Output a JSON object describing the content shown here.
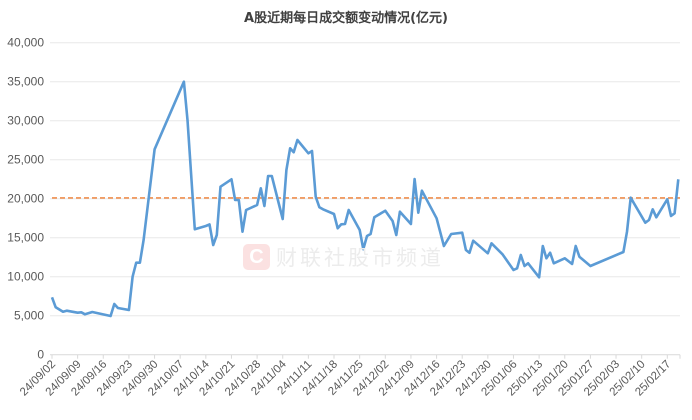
{
  "watermark": {
    "logo": "C",
    "text": "财联社股市频道"
  },
  "chart_data": {
    "type": "line",
    "title": "A股近期每日成交额变动情况(亿元)",
    "xlabel": "",
    "ylabel": "",
    "ylim": [
      0,
      40000
    ],
    "yticks": [
      "0",
      "5,000",
      "10,000",
      "15,000",
      "20,000",
      "25,000",
      "30,000",
      "35,000",
      "40,000"
    ],
    "xtick_labels": [
      "24/09/02",
      "24/09/09",
      "24/09/16",
      "24/09/23",
      "24/09/30",
      "24/10/07",
      "24/10/14",
      "24/10/21",
      "24/10/28",
      "24/11/04",
      "24/11/11",
      "24/11/18",
      "24/11/25",
      "24/12/02",
      "24/12/09",
      "24/12/16",
      "24/12/23",
      "24/12/30",
      "25/01/06",
      "25/01/13",
      "25/01/20",
      "25/01/27",
      "25/02/03",
      "25/02/10",
      "25/02/17"
    ],
    "grid": true,
    "legend": "none",
    "colors": {
      "series": "#5b9bd5",
      "reference": "#ed7d31"
    },
    "reference_line": {
      "value": 20100,
      "style": "dashed"
    },
    "series": [
      {
        "x": [
          "24/09/02",
          "24/09/03",
          "24/09/05",
          "24/09/06",
          "24/09/09",
          "24/09/10",
          "24/09/11",
          "24/09/13",
          "24/09/18",
          "24/09/19",
          "24/09/20",
          "24/09/23",
          "24/09/24",
          "24/09/25",
          "24/09/26",
          "24/09/27",
          "24/09/30",
          "24/10/08",
          "24/10/09",
          "24/10/11",
          "24/10/14",
          "24/10/15",
          "24/10/16",
          "24/10/17",
          "24/10/18",
          "24/10/21",
          "24/10/22",
          "24/10/23",
          "24/10/24",
          "24/10/25",
          "24/10/28",
          "24/10/29",
          "24/10/30",
          "24/10/31",
          "24/11/01",
          "24/11/04",
          "24/11/05",
          "24/11/06",
          "24/11/07",
          "24/11/08",
          "24/11/11",
          "24/11/12",
          "24/11/13",
          "24/11/14",
          "24/11/15",
          "24/11/18",
          "24/11/19",
          "24/11/20",
          "24/11/21",
          "24/11/22",
          "24/11/25",
          "24/11/26",
          "24/11/27",
          "24/11/28",
          "24/11/29",
          "24/12/02",
          "24/12/04",
          "24/12/05",
          "24/12/06",
          "24/12/09",
          "24/12/10",
          "24/12/11",
          "24/12/12",
          "24/12/16",
          "24/12/18",
          "24/12/20",
          "24/12/23",
          "24/12/24",
          "24/12/25",
          "24/12/26",
          "24/12/30",
          "24/12/31",
          "25/01/03",
          "25/01/06",
          "25/01/07",
          "25/01/08",
          "25/01/09",
          "25/01/10",
          "25/01/13",
          "25/01/14",
          "25/01/15",
          "25/01/16",
          "25/01/17",
          "25/01/20",
          "25/01/22",
          "25/01/23",
          "25/01/24",
          "25/01/27",
          "25/02/05",
          "25/02/06",
          "25/02/07",
          "25/02/11",
          "25/02/12",
          "25/02/13",
          "25/02/14",
          "25/02/17",
          "25/02/18",
          "25/02/19",
          "25/02/20"
        ],
        "values": [
          7360,
          6080,
          5510,
          5640,
          5380,
          5440,
          5180,
          5470,
          4960,
          6500,
          5990,
          5730,
          10000,
          11790,
          11790,
          14700,
          26330,
          35000,
          30090,
          16080,
          16500,
          16700,
          14060,
          15350,
          21540,
          22490,
          19830,
          19830,
          15770,
          18550,
          19190,
          21330,
          19060,
          22910,
          22910,
          17400,
          23680,
          26460,
          25950,
          27520,
          25820,
          26110,
          20260,
          18900,
          18640,
          18040,
          16200,
          16720,
          16760,
          18550,
          15990,
          13520,
          15220,
          15470,
          17610,
          18460,
          17140,
          15350,
          18330,
          16760,
          22530,
          18200,
          21030,
          17490,
          13940,
          15470,
          15640,
          13420,
          13070,
          14620,
          13000,
          14280,
          12870,
          10860,
          11080,
          12780,
          11370,
          11720,
          9920,
          13940,
          12360,
          13080,
          11720,
          12360,
          11630,
          13940,
          12560,
          11370,
          13170,
          15770,
          20130,
          16920,
          17270,
          18640,
          17610,
          19920,
          17780,
          18130,
          22490
        ]
      }
    ]
  }
}
